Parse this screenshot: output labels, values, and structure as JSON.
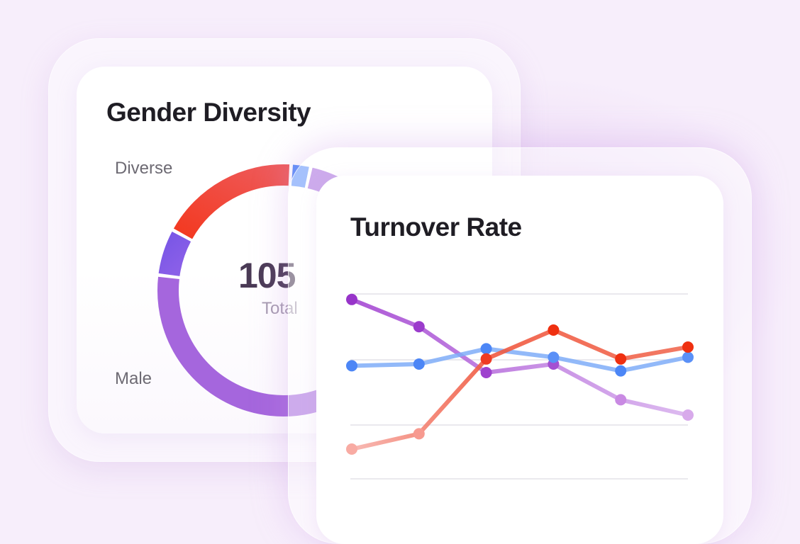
{
  "colors": {
    "red": "#f0452b",
    "blue": "#5b8ff9",
    "purple": "#9b3bd6",
    "violet": "#7f5ce8"
  },
  "gender_card": {
    "title": "Gender Diversity",
    "legend_labels": [
      "Diverse",
      "Male"
    ],
    "center_value": "105",
    "center_caption": "Total"
  },
  "turnover_card": {
    "title": "Turnover Rate"
  },
  "chart_data": [
    {
      "type": "pie",
      "title": "Gender Diversity",
      "donut": true,
      "center_text": "105",
      "center_caption": "Total",
      "slices": [
        {
          "label": "",
          "value": 6,
          "color": "#7f5ce8"
        },
        {
          "label": "",
          "value": 18,
          "color": "#f0452b"
        },
        {
          "label": "",
          "value": 2.5,
          "color": "#5b8ff9"
        },
        {
          "label": "",
          "value": 73.5,
          "color": "#a566dd"
        }
      ],
      "visible_labels": [
        "Diverse",
        "Male"
      ]
    },
    {
      "type": "line",
      "title": "Turnover Rate",
      "x": [
        1,
        2,
        3,
        4,
        5,
        6
      ],
      "ylim": [
        0,
        100
      ],
      "grid": true,
      "series": [
        {
          "color": "#9b3bd6",
          "values": [
            88,
            72,
            45,
            50,
            29,
            20
          ]
        },
        {
          "color": "#5b8ff9",
          "values": [
            49,
            50,
            59,
            54,
            46,
            54
          ]
        },
        {
          "color": "#f0452b",
          "values": [
            0,
            9,
            53,
            70,
            53,
            60
          ]
        }
      ]
    }
  ]
}
